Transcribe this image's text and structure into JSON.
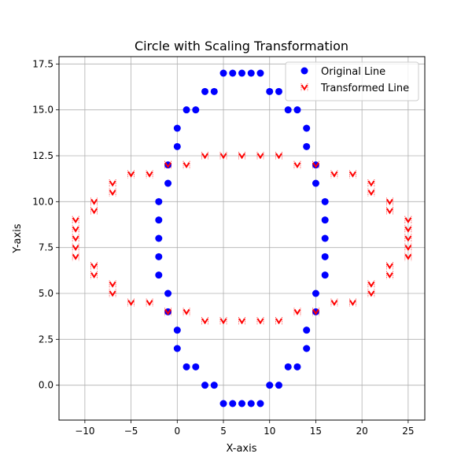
{
  "chart_data": {
    "type": "scatter",
    "title": "Circle with Scaling Transformation",
    "xlabel": "X-axis",
    "ylabel": "Y-axis",
    "xlim": [
      -12.8,
      26.8
    ],
    "ylim": [
      -1.9,
      17.9
    ],
    "xticks": [
      -10,
      -5,
      0,
      5,
      10,
      15,
      20,
      25
    ],
    "xtick_labels": [
      "−10",
      "−5",
      "0",
      "5",
      "10",
      "15",
      "20",
      "25"
    ],
    "yticks": [
      0.0,
      2.5,
      5.0,
      7.5,
      10.0,
      12.5,
      15.0,
      17.5
    ],
    "ytick_labels": [
      "0.0",
      "2.5",
      "5.0",
      "7.5",
      "10.0",
      "12.5",
      "15.0",
      "17.5"
    ],
    "grid": true,
    "legend": "top-right",
    "series": [
      {
        "name": "Original Line",
        "color": "#0000ff",
        "marker": "circle",
        "points": [
          [
            5,
            17
          ],
          [
            6,
            17
          ],
          [
            7,
            17
          ],
          [
            8,
            17
          ],
          [
            9,
            17
          ],
          [
            3,
            16
          ],
          [
            4,
            16
          ],
          [
            10,
            16
          ],
          [
            11,
            16
          ],
          [
            1,
            15
          ],
          [
            2,
            15
          ],
          [
            12,
            15
          ],
          [
            13,
            15
          ],
          [
            0,
            14
          ],
          [
            14,
            14
          ],
          [
            0,
            13
          ],
          [
            14,
            13
          ],
          [
            -1,
            12
          ],
          [
            15,
            12
          ],
          [
            -1,
            11
          ],
          [
            15,
            11
          ],
          [
            -2,
            10
          ],
          [
            16,
            10
          ],
          [
            -2,
            9
          ],
          [
            16,
            9
          ],
          [
            -2,
            8
          ],
          [
            16,
            8
          ],
          [
            -2,
            7
          ],
          [
            16,
            7
          ],
          [
            -2,
            6
          ],
          [
            16,
            6
          ],
          [
            -1,
            5
          ],
          [
            15,
            5
          ],
          [
            -1,
            4
          ],
          [
            15,
            4
          ],
          [
            0,
            3
          ],
          [
            14,
            3
          ],
          [
            0,
            2
          ],
          [
            14,
            2
          ],
          [
            1,
            1
          ],
          [
            2,
            1
          ],
          [
            12,
            1
          ],
          [
            13,
            1
          ],
          [
            3,
            0
          ],
          [
            4,
            0
          ],
          [
            10,
            0
          ],
          [
            11,
            0
          ],
          [
            5,
            -1
          ],
          [
            6,
            -1
          ],
          [
            7,
            -1
          ],
          [
            8,
            -1
          ],
          [
            9,
            -1
          ]
        ]
      },
      {
        "name": "Transformed Line",
        "color": "#ff0000",
        "marker": "x-chevron",
        "points": [
          [
            3,
            12.5
          ],
          [
            5,
            12.5
          ],
          [
            7,
            12.5
          ],
          [
            9,
            12.5
          ],
          [
            11,
            12.5
          ],
          [
            -1,
            12
          ],
          [
            1,
            12
          ],
          [
            13,
            12
          ],
          [
            15,
            12
          ],
          [
            -5,
            11.5
          ],
          [
            -3,
            11.5
          ],
          [
            17,
            11.5
          ],
          [
            19,
            11.5
          ],
          [
            -7,
            11
          ],
          [
            21,
            11
          ],
          [
            -7,
            10.5
          ],
          [
            21,
            10.5
          ],
          [
            -9,
            10
          ],
          [
            23,
            10
          ],
          [
            -9,
            9.5
          ],
          [
            23,
            9.5
          ],
          [
            -11,
            9
          ],
          [
            25,
            9
          ],
          [
            -11,
            8.5
          ],
          [
            25,
            8.5
          ],
          [
            -11,
            8
          ],
          [
            25,
            8
          ],
          [
            -11,
            7.5
          ],
          [
            25,
            7.5
          ],
          [
            -11,
            7
          ],
          [
            25,
            7
          ],
          [
            -9,
            6.5
          ],
          [
            23,
            6.5
          ],
          [
            -9,
            6
          ],
          [
            23,
            6
          ],
          [
            -7,
            5.5
          ],
          [
            21,
            5.5
          ],
          [
            -7,
            5
          ],
          [
            21,
            5
          ],
          [
            -5,
            4.5
          ],
          [
            -3,
            4.5
          ],
          [
            17,
            4.5
          ],
          [
            19,
            4.5
          ],
          [
            -1,
            4
          ],
          [
            1,
            4
          ],
          [
            13,
            4
          ],
          [
            15,
            4
          ],
          [
            3,
            3.5
          ],
          [
            5,
            3.5
          ],
          [
            7,
            3.5
          ],
          [
            9,
            3.5
          ],
          [
            11,
            3.5
          ]
        ]
      }
    ]
  }
}
